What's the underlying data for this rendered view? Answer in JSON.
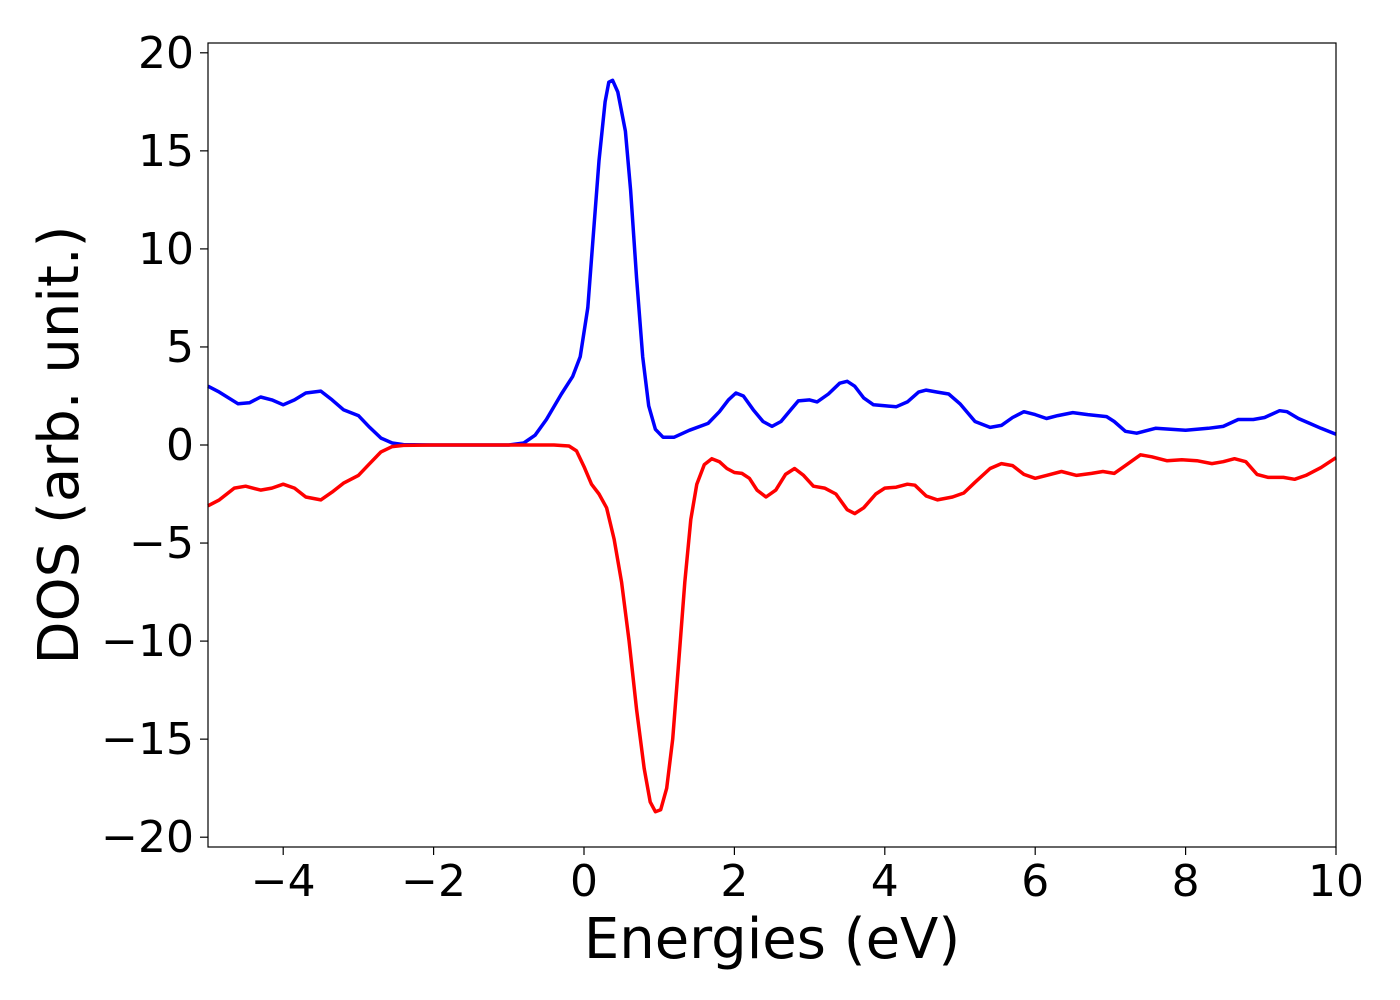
{
  "chart_data": {
    "type": "line",
    "title": "",
    "xlabel": "Energies (eV)",
    "ylabel": "DOS (arb. unit.)",
    "xlim": [
      -5,
      10
    ],
    "ylim": [
      -20.5,
      20.5
    ],
    "grid": false,
    "legend": "none",
    "x_ticks": [
      -4,
      -2,
      0,
      2,
      4,
      6,
      8,
      10
    ],
    "y_ticks": [
      20,
      15,
      10,
      5,
      0,
      -5,
      -10,
      -15,
      -20
    ],
    "x_tick_labels": [
      "−4",
      "−2",
      "0",
      "2",
      "4",
      "6",
      "8",
      "10"
    ],
    "y_tick_labels": [
      "20",
      "15",
      "10",
      "5",
      "0",
      "−5",
      "−10",
      "−15",
      "−20"
    ],
    "series": [
      {
        "color": "#0000ff",
        "points": [
          [
            -5.0,
            3.0
          ],
          [
            -4.85,
            2.7
          ],
          [
            -4.6,
            2.1
          ],
          [
            -4.45,
            2.15
          ],
          [
            -4.3,
            2.45
          ],
          [
            -4.15,
            2.3
          ],
          [
            -4.0,
            2.05
          ],
          [
            -3.85,
            2.3
          ],
          [
            -3.7,
            2.65
          ],
          [
            -3.5,
            2.75
          ],
          [
            -3.35,
            2.3
          ],
          [
            -3.2,
            1.8
          ],
          [
            -3.0,
            1.5
          ],
          [
            -2.85,
            0.9
          ],
          [
            -2.7,
            0.35
          ],
          [
            -2.55,
            0.1
          ],
          [
            -2.4,
            0.02
          ],
          [
            -2.0,
            0.0
          ],
          [
            -1.5,
            0.0
          ],
          [
            -1.0,
            0.0
          ],
          [
            -0.8,
            0.1
          ],
          [
            -0.65,
            0.5
          ],
          [
            -0.5,
            1.3
          ],
          [
            -0.3,
            2.6
          ],
          [
            -0.15,
            3.5
          ],
          [
            -0.05,
            4.5
          ],
          [
            0.05,
            7.0
          ],
          [
            0.12,
            10.5
          ],
          [
            0.2,
            14.5
          ],
          [
            0.28,
            17.5
          ],
          [
            0.33,
            18.5
          ],
          [
            0.38,
            18.6
          ],
          [
            0.45,
            18.0
          ],
          [
            0.55,
            16.0
          ],
          [
            0.62,
            13.0
          ],
          [
            0.7,
            8.5
          ],
          [
            0.78,
            4.5
          ],
          [
            0.86,
            2.0
          ],
          [
            0.95,
            0.8
          ],
          [
            1.05,
            0.4
          ],
          [
            1.2,
            0.4
          ],
          [
            1.4,
            0.75
          ],
          [
            1.65,
            1.1
          ],
          [
            1.8,
            1.7
          ],
          [
            1.92,
            2.3
          ],
          [
            2.02,
            2.65
          ],
          [
            2.12,
            2.5
          ],
          [
            2.25,
            1.8
          ],
          [
            2.38,
            1.2
          ],
          [
            2.5,
            0.95
          ],
          [
            2.62,
            1.2
          ],
          [
            2.75,
            1.8
          ],
          [
            2.85,
            2.25
          ],
          [
            3.0,
            2.3
          ],
          [
            3.1,
            2.2
          ],
          [
            3.25,
            2.6
          ],
          [
            3.4,
            3.15
          ],
          [
            3.5,
            3.25
          ],
          [
            3.6,
            3.0
          ],
          [
            3.72,
            2.4
          ],
          [
            3.85,
            2.05
          ],
          [
            4.0,
            2.0
          ],
          [
            4.15,
            1.95
          ],
          [
            4.3,
            2.2
          ],
          [
            4.45,
            2.7
          ],
          [
            4.55,
            2.8
          ],
          [
            4.7,
            2.7
          ],
          [
            4.85,
            2.6
          ],
          [
            5.0,
            2.1
          ],
          [
            5.2,
            1.2
          ],
          [
            5.4,
            0.9
          ],
          [
            5.55,
            1.0
          ],
          [
            5.7,
            1.4
          ],
          [
            5.85,
            1.7
          ],
          [
            6.0,
            1.55
          ],
          [
            6.15,
            1.35
          ],
          [
            6.3,
            1.5
          ],
          [
            6.5,
            1.65
          ],
          [
            6.7,
            1.55
          ],
          [
            6.95,
            1.45
          ],
          [
            7.05,
            1.2
          ],
          [
            7.2,
            0.7
          ],
          [
            7.35,
            0.6
          ],
          [
            7.6,
            0.85
          ],
          [
            7.8,
            0.8
          ],
          [
            8.0,
            0.75
          ],
          [
            8.3,
            0.85
          ],
          [
            8.5,
            0.95
          ],
          [
            8.7,
            1.3
          ],
          [
            8.9,
            1.3
          ],
          [
            9.05,
            1.4
          ],
          [
            9.25,
            1.75
          ],
          [
            9.35,
            1.7
          ],
          [
            9.5,
            1.35
          ],
          [
            9.65,
            1.1
          ],
          [
            9.8,
            0.85
          ],
          [
            10.0,
            0.55
          ]
        ]
      },
      {
        "color": "#ff0000",
        "points": [
          [
            -5.0,
            -3.1
          ],
          [
            -4.85,
            -2.8
          ],
          [
            -4.65,
            -2.2
          ],
          [
            -4.5,
            -2.1
          ],
          [
            -4.3,
            -2.3
          ],
          [
            -4.15,
            -2.2
          ],
          [
            -4.0,
            -2.0
          ],
          [
            -3.85,
            -2.2
          ],
          [
            -3.7,
            -2.65
          ],
          [
            -3.5,
            -2.8
          ],
          [
            -3.35,
            -2.4
          ],
          [
            -3.2,
            -1.95
          ],
          [
            -3.0,
            -1.55
          ],
          [
            -2.85,
            -0.95
          ],
          [
            -2.7,
            -0.35
          ],
          [
            -2.55,
            -0.08
          ],
          [
            -2.4,
            -0.02
          ],
          [
            -2.0,
            0.0
          ],
          [
            -1.0,
            0.0
          ],
          [
            -0.4,
            0.0
          ],
          [
            -0.2,
            -0.05
          ],
          [
            -0.1,
            -0.3
          ],
          [
            0.0,
            -1.1
          ],
          [
            0.1,
            -2.0
          ],
          [
            0.2,
            -2.5
          ],
          [
            0.3,
            -3.2
          ],
          [
            0.4,
            -4.8
          ],
          [
            0.5,
            -7.0
          ],
          [
            0.6,
            -10.0
          ],
          [
            0.7,
            -13.5
          ],
          [
            0.8,
            -16.5
          ],
          [
            0.88,
            -18.2
          ],
          [
            0.95,
            -18.7
          ],
          [
            1.02,
            -18.6
          ],
          [
            1.1,
            -17.5
          ],
          [
            1.18,
            -15.0
          ],
          [
            1.26,
            -11.0
          ],
          [
            1.34,
            -7.0
          ],
          [
            1.42,
            -3.8
          ],
          [
            1.5,
            -2.0
          ],
          [
            1.6,
            -1.0
          ],
          [
            1.7,
            -0.7
          ],
          [
            1.8,
            -0.85
          ],
          [
            1.9,
            -1.2
          ],
          [
            2.0,
            -1.4
          ],
          [
            2.1,
            -1.45
          ],
          [
            2.2,
            -1.7
          ],
          [
            2.3,
            -2.3
          ],
          [
            2.42,
            -2.65
          ],
          [
            2.55,
            -2.3
          ],
          [
            2.68,
            -1.5
          ],
          [
            2.8,
            -1.2
          ],
          [
            2.92,
            -1.55
          ],
          [
            3.05,
            -2.1
          ],
          [
            3.2,
            -2.2
          ],
          [
            3.35,
            -2.5
          ],
          [
            3.5,
            -3.3
          ],
          [
            3.6,
            -3.5
          ],
          [
            3.72,
            -3.2
          ],
          [
            3.88,
            -2.5
          ],
          [
            4.0,
            -2.2
          ],
          [
            4.15,
            -2.15
          ],
          [
            4.3,
            -2.0
          ],
          [
            4.4,
            -2.05
          ],
          [
            4.55,
            -2.6
          ],
          [
            4.7,
            -2.8
          ],
          [
            4.9,
            -2.65
          ],
          [
            5.05,
            -2.45
          ],
          [
            5.2,
            -1.9
          ],
          [
            5.4,
            -1.2
          ],
          [
            5.55,
            -0.95
          ],
          [
            5.7,
            -1.05
          ],
          [
            5.85,
            -1.5
          ],
          [
            6.0,
            -1.7
          ],
          [
            6.15,
            -1.55
          ],
          [
            6.35,
            -1.35
          ],
          [
            6.55,
            -1.55
          ],
          [
            6.75,
            -1.45
          ],
          [
            6.9,
            -1.35
          ],
          [
            7.05,
            -1.45
          ],
          [
            7.2,
            -1.05
          ],
          [
            7.4,
            -0.5
          ],
          [
            7.55,
            -0.6
          ],
          [
            7.75,
            -0.8
          ],
          [
            7.95,
            -0.75
          ],
          [
            8.15,
            -0.8
          ],
          [
            8.35,
            -0.95
          ],
          [
            8.5,
            -0.85
          ],
          [
            8.65,
            -0.7
          ],
          [
            8.8,
            -0.85
          ],
          [
            8.95,
            -1.5
          ],
          [
            9.1,
            -1.65
          ],
          [
            9.3,
            -1.65
          ],
          [
            9.45,
            -1.75
          ],
          [
            9.6,
            -1.55
          ],
          [
            9.8,
            -1.15
          ],
          [
            10.0,
            -0.65
          ]
        ]
      }
    ]
  }
}
